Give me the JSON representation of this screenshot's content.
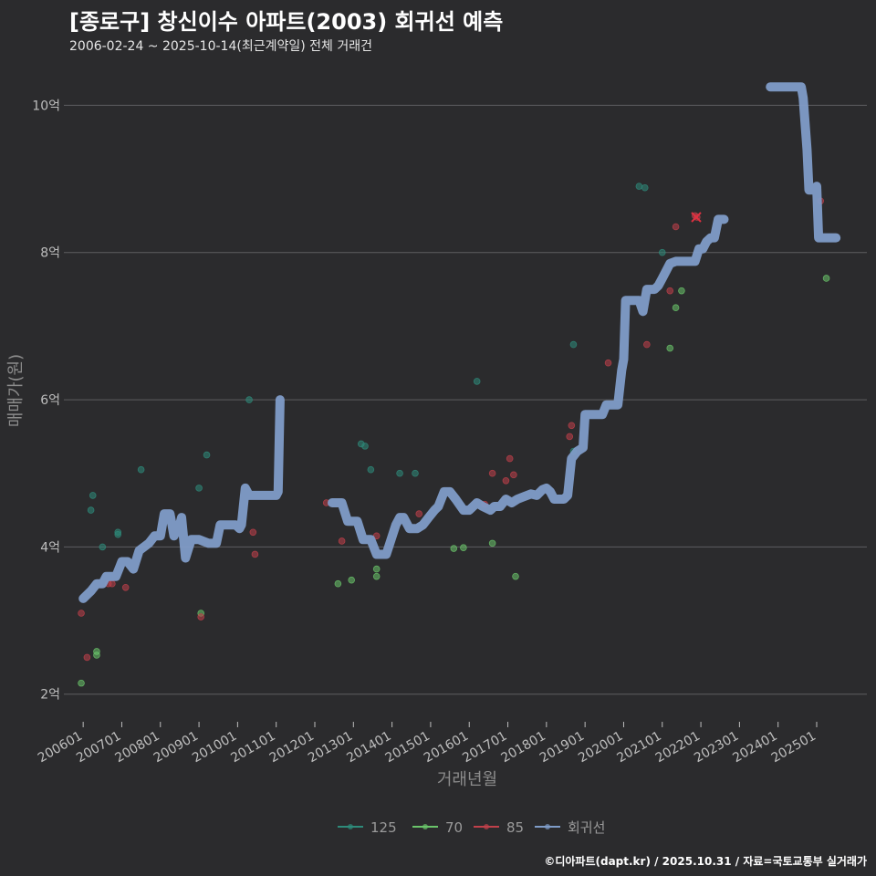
{
  "header": {
    "title": "[종로구] 창신이수 아파트(2003) 회귀선 예측",
    "subtitle": "2006-02-24 ~ 2025-10-14(최근계약일) 전체 거래건"
  },
  "footer": {
    "credit": "©디아파트(dapt.kr) / 2025.10.31 / 자료=국토교통부 실거래가"
  },
  "colors": {
    "background": "#2b2b2d",
    "grid": "#5e5e60",
    "regression": "#7f9cc8",
    "s125": "#2e8b7a",
    "s70": "#6ac46a",
    "s85": "#c0404a"
  },
  "chart_data": {
    "type": "scatter",
    "title": "[종로구] 창신이수 아파트(2003) 회귀선 예측",
    "xlabel": "거래년월",
    "ylabel": "매매가(원)",
    "xlim": [
      2005.5,
      2026.3
    ],
    "ylim": [
      1.6,
      10.6
    ],
    "x_ticks": [
      {
        "label": "200601",
        "x": 2006.0
      },
      {
        "label": "200701",
        "x": 2007.0
      },
      {
        "label": "200801",
        "x": 2008.0
      },
      {
        "label": "200901",
        "x": 2009.0
      },
      {
        "label": "201001",
        "x": 2010.0
      },
      {
        "label": "201101",
        "x": 2011.0
      },
      {
        "label": "201201",
        "x": 2012.0
      },
      {
        "label": "201301",
        "x": 2013.0
      },
      {
        "label": "201401",
        "x": 2014.0
      },
      {
        "label": "201501",
        "x": 2015.0
      },
      {
        "label": "201601",
        "x": 2016.0
      },
      {
        "label": "201701",
        "x": 2017.0
      },
      {
        "label": "201801",
        "x": 2018.0
      },
      {
        "label": "201901",
        "x": 2019.0
      },
      {
        "label": "202001",
        "x": 2020.0
      },
      {
        "label": "202101",
        "x": 2021.0
      },
      {
        "label": "202201",
        "x": 2022.0
      },
      {
        "label": "202301",
        "x": 2023.0
      },
      {
        "label": "202401",
        "x": 2024.0
      },
      {
        "label": "202501",
        "x": 2025.0
      }
    ],
    "y_ticks": [
      {
        "label": "2억",
        "y": 2
      },
      {
        "label": "4억",
        "y": 4
      },
      {
        "label": "6억",
        "y": 6
      },
      {
        "label": "8억",
        "y": 8
      },
      {
        "label": "10억",
        "y": 10
      }
    ],
    "legend": [
      {
        "name": "125",
        "color": "#2e8b7a"
      },
      {
        "name": "70",
        "color": "#6ac46a"
      },
      {
        "name": "85",
        "color": "#c0404a"
      },
      {
        "name": "회귀선",
        "color": "#7f9cc8"
      }
    ],
    "series": [
      {
        "name": "125",
        "color": "#2e8b7a",
        "points": [
          [
            2006.2,
            4.5
          ],
          [
            2006.25,
            4.7
          ],
          [
            2006.5,
            4.0
          ],
          [
            2006.9,
            4.2
          ],
          [
            2006.9,
            4.17
          ],
          [
            2007.5,
            5.05
          ],
          [
            2009.0,
            4.8
          ],
          [
            2009.2,
            5.25
          ],
          [
            2010.3,
            6.0
          ],
          [
            2013.2,
            5.4
          ],
          [
            2013.3,
            5.37
          ],
          [
            2013.45,
            5.05
          ],
          [
            2014.2,
            5.0
          ],
          [
            2014.6,
            5.0
          ],
          [
            2016.2,
            6.25
          ],
          [
            2018.7,
            6.75
          ],
          [
            2018.7,
            5.3
          ],
          [
            2020.4,
            8.9
          ],
          [
            2020.55,
            8.88
          ],
          [
            2021.0,
            8.0
          ]
        ]
      },
      {
        "name": "70",
        "color": "#6ac46a",
        "points": [
          [
            2005.95,
            2.15
          ],
          [
            2006.35,
            2.58
          ],
          [
            2006.35,
            2.53
          ],
          [
            2009.05,
            3.1
          ],
          [
            2012.6,
            3.5
          ],
          [
            2012.95,
            3.55
          ],
          [
            2013.6,
            3.7
          ],
          [
            2013.6,
            3.6
          ],
          [
            2015.6,
            3.98
          ],
          [
            2015.85,
            3.99
          ],
          [
            2016.6,
            4.05
          ],
          [
            2017.2,
            3.6
          ],
          [
            2021.35,
            7.25
          ],
          [
            2021.5,
            7.48
          ],
          [
            2021.2,
            6.7
          ],
          [
            2025.25,
            7.65
          ]
        ]
      },
      {
        "name": "85",
        "color": "#c0404a",
        "points": [
          [
            2005.95,
            3.1
          ],
          [
            2006.1,
            2.5
          ],
          [
            2006.65,
            3.5
          ],
          [
            2006.75,
            3.5
          ],
          [
            2007.1,
            3.45
          ],
          [
            2009.05,
            3.05
          ],
          [
            2010.4,
            4.2
          ],
          [
            2010.45,
            3.9
          ],
          [
            2012.3,
            4.6
          ],
          [
            2012.7,
            4.08
          ],
          [
            2013.6,
            4.15
          ],
          [
            2014.7,
            4.45
          ],
          [
            2016.4,
            4.58
          ],
          [
            2016.6,
            5.0
          ],
          [
            2016.95,
            4.9
          ],
          [
            2017.05,
            5.2
          ],
          [
            2017.15,
            4.98
          ],
          [
            2018.6,
            5.5
          ],
          [
            2018.65,
            5.65
          ],
          [
            2019.6,
            6.5
          ],
          [
            2020.6,
            6.75
          ],
          [
            2021.2,
            7.48
          ],
          [
            2021.35,
            8.35
          ],
          [
            2021.85,
            8.5
          ],
          [
            2021.9,
            8.48
          ],
          [
            2025.1,
            8.7
          ]
        ]
      }
    ],
    "regression": {
      "name": "회귀선",
      "segments": [
        [
          [
            2006.0,
            3.3
          ],
          [
            2006.1,
            3.35
          ],
          [
            2006.2,
            3.4
          ],
          [
            2006.35,
            3.5
          ],
          [
            2006.5,
            3.5
          ],
          [
            2006.6,
            3.6
          ],
          [
            2006.85,
            3.6
          ],
          [
            2007.0,
            3.8
          ],
          [
            2007.15,
            3.8
          ],
          [
            2007.3,
            3.7
          ],
          [
            2007.45,
            3.95
          ],
          [
            2007.7,
            4.05
          ],
          [
            2007.85,
            4.15
          ],
          [
            2008.0,
            4.15
          ],
          [
            2008.1,
            4.45
          ],
          [
            2008.25,
            4.45
          ],
          [
            2008.3,
            4.3
          ],
          [
            2008.35,
            4.15
          ],
          [
            2008.5,
            4.3
          ],
          [
            2008.55,
            4.4
          ],
          [
            2008.65,
            3.85
          ],
          [
            2008.8,
            4.1
          ],
          [
            2009.0,
            4.1
          ],
          [
            2009.25,
            4.05
          ],
          [
            2009.45,
            4.05
          ],
          [
            2009.55,
            4.3
          ],
          [
            2009.7,
            4.3
          ],
          [
            2009.95,
            4.3
          ],
          [
            2010.05,
            4.25
          ],
          [
            2010.1,
            4.3
          ],
          [
            2010.2,
            4.8
          ],
          [
            2010.3,
            4.7
          ],
          [
            2010.6,
            4.7
          ],
          [
            2010.8,
            4.7
          ],
          [
            2011.0,
            4.7
          ],
          [
            2011.05,
            4.75
          ],
          [
            2011.1,
            6.0
          ]
        ],
        [
          [
            2012.45,
            4.6
          ],
          [
            2012.7,
            4.6
          ],
          [
            2012.85,
            4.35
          ],
          [
            2013.1,
            4.35
          ],
          [
            2013.25,
            4.1
          ],
          [
            2013.45,
            4.1
          ],
          [
            2013.6,
            3.9
          ],
          [
            2013.85,
            3.9
          ],
          [
            2014.1,
            4.3
          ],
          [
            2014.2,
            4.4
          ],
          [
            2014.3,
            4.4
          ],
          [
            2014.45,
            4.25
          ],
          [
            2014.65,
            4.25
          ],
          [
            2014.8,
            4.3
          ],
          [
            2014.95,
            4.4
          ],
          [
            2015.1,
            4.5
          ],
          [
            2015.2,
            4.55
          ],
          [
            2015.35,
            4.75
          ],
          [
            2015.5,
            4.75
          ],
          [
            2015.65,
            4.65
          ],
          [
            2015.85,
            4.5
          ],
          [
            2016.0,
            4.5
          ],
          [
            2016.2,
            4.6
          ],
          [
            2016.35,
            4.55
          ],
          [
            2016.55,
            4.5
          ],
          [
            2016.65,
            4.55
          ],
          [
            2016.8,
            4.55
          ],
          [
            2016.95,
            4.65
          ],
          [
            2017.1,
            4.6
          ],
          [
            2017.25,
            4.65
          ],
          [
            2017.4,
            4.68
          ],
          [
            2017.6,
            4.72
          ],
          [
            2017.75,
            4.7
          ],
          [
            2017.9,
            4.78
          ],
          [
            2018.0,
            4.8
          ],
          [
            2018.1,
            4.75
          ],
          [
            2018.2,
            4.65
          ],
          [
            2018.3,
            4.65
          ],
          [
            2018.45,
            4.65
          ],
          [
            2018.55,
            4.7
          ],
          [
            2018.65,
            5.2
          ],
          [
            2018.8,
            5.3
          ],
          [
            2018.95,
            5.35
          ],
          [
            2019.0,
            5.8
          ],
          [
            2019.2,
            5.8
          ],
          [
            2019.45,
            5.8
          ],
          [
            2019.55,
            5.93
          ],
          [
            2019.75,
            5.93
          ],
          [
            2019.85,
            5.93
          ],
          [
            2019.95,
            6.4
          ],
          [
            2020.0,
            6.55
          ],
          [
            2020.05,
            7.35
          ],
          [
            2020.4,
            7.35
          ],
          [
            2020.5,
            7.2
          ],
          [
            2020.6,
            7.5
          ],
          [
            2020.8,
            7.5
          ],
          [
            2020.9,
            7.55
          ],
          [
            2021.0,
            7.65
          ],
          [
            2021.1,
            7.75
          ],
          [
            2021.2,
            7.85
          ],
          [
            2021.35,
            7.88
          ],
          [
            2021.55,
            7.88
          ],
          [
            2021.7,
            7.88
          ],
          [
            2021.85,
            7.88
          ],
          [
            2021.95,
            8.05
          ],
          [
            2022.05,
            8.05
          ],
          [
            2022.15,
            8.15
          ],
          [
            2022.25,
            8.2
          ],
          [
            2022.35,
            8.2
          ],
          [
            2022.45,
            8.45
          ],
          [
            2022.6,
            8.45
          ]
        ],
        [
          [
            2023.8,
            10.25
          ],
          [
            2024.3,
            10.25
          ],
          [
            2024.6,
            10.25
          ],
          [
            2024.65,
            10.1
          ],
          [
            2024.75,
            9.4
          ],
          [
            2024.8,
            8.85
          ],
          [
            2024.9,
            8.85
          ],
          [
            2025.0,
            8.9
          ],
          [
            2025.05,
            8.2
          ],
          [
            2025.2,
            8.2
          ],
          [
            2025.5,
            8.2
          ]
        ]
      ]
    }
  }
}
